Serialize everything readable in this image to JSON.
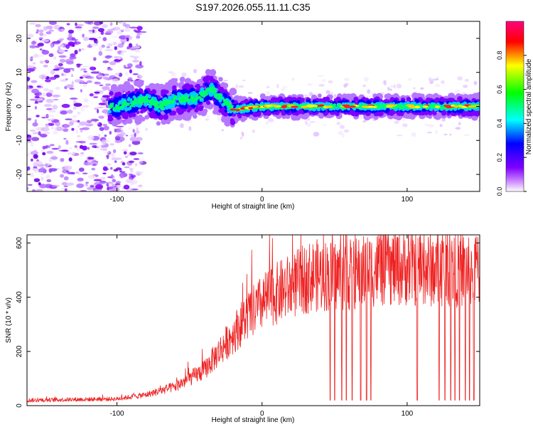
{
  "title": "S197.2026.055.11.11.C35",
  "colors": {
    "line": "#ee2222",
    "axis": "#000000",
    "background": "#ffffff"
  },
  "chart_data": [
    {
      "type": "heatmap",
      "title": "S197.2026.055.11.11.C35",
      "xlabel": "Height of straight line (km)",
      "ylabel": "Frequency (Hz)",
      "xlim": [
        -162,
        150
      ],
      "ylim": [
        -25,
        25
      ],
      "xticks": [
        -100,
        0,
        100
      ],
      "yticks": [
        -20,
        -10,
        0,
        10,
        20
      ],
      "xtick_labels": [
        "-100",
        "0",
        "100"
      ],
      "ytick_labels": [
        "-20",
        "-10",
        "0",
        "10",
        "20"
      ],
      "colorbar": {
        "label": "Normalized spectral amplitude",
        "range": [
          0,
          1
        ],
        "ticks": [
          0.0,
          0.2,
          0.4,
          0.6,
          0.8
        ],
        "tick_labels": [
          "0.0",
          "0.2",
          "0.4",
          "0.6",
          "0.8"
        ],
        "colormap": [
          "#ffffff",
          "#7f00ff",
          "#0000ff",
          "#00ffff",
          "#00ff00",
          "#ffff00",
          "#ff0000",
          "#ff0080"
        ]
      },
      "ridge": [
        {
          "x": -100,
          "f": 0.0
        },
        {
          "x": -80,
          "f": 2.0
        },
        {
          "x": -70,
          "f": 0.0
        },
        {
          "x": -60,
          "f": 2.0
        },
        {
          "x": -45,
          "f": 2.5
        },
        {
          "x": -35,
          "f": 5.0
        },
        {
          "x": -25,
          "f": 1.0
        },
        {
          "x": -20,
          "f": -1.0
        },
        {
          "x": 0,
          "f": 0.0
        },
        {
          "x": 50,
          "f": 0.0
        },
        {
          "x": 100,
          "f": 0.0
        },
        {
          "x": 150,
          "f": 0.0
        }
      ]
    },
    {
      "type": "line",
      "xlabel": "Height of straight line (km)",
      "ylabel": "SNR (10 * v/v)",
      "xlim": [
        -162,
        150
      ],
      "ylim": [
        0,
        630
      ],
      "xticks": [
        -100,
        0,
        100
      ],
      "yticks": [
        0,
        200,
        400,
        600
      ],
      "xtick_labels": [
        "-100",
        "0",
        "100"
      ],
      "ytick_labels": [
        "0",
        "200",
        "400",
        "600"
      ],
      "series": [
        {
          "name": "SNR",
          "trend": [
            {
              "x": -162,
              "y": 20
            },
            {
              "x": -100,
              "y": 25
            },
            {
              "x": -80,
              "y": 40
            },
            {
              "x": -60,
              "y": 70
            },
            {
              "x": -40,
              "y": 130
            },
            {
              "x": -25,
              "y": 230
            },
            {
              "x": -10,
              "y": 330
            },
            {
              "x": 5,
              "y": 400
            },
            {
              "x": 20,
              "y": 440
            },
            {
              "x": 35,
              "y": 480
            },
            {
              "x": 60,
              "y": 480
            },
            {
              "x": 80,
              "y": 505
            },
            {
              "x": 100,
              "y": 510
            },
            {
              "x": 120,
              "y": 500
            },
            {
              "x": 150,
              "y": 505
            }
          ],
          "dropouts": [
            47,
            50,
            55,
            58,
            62,
            68,
            72,
            75,
            107,
            122,
            126,
            130,
            133,
            136,
            140,
            143,
            146
          ],
          "dropout_level": 20
        }
      ]
    }
  ]
}
